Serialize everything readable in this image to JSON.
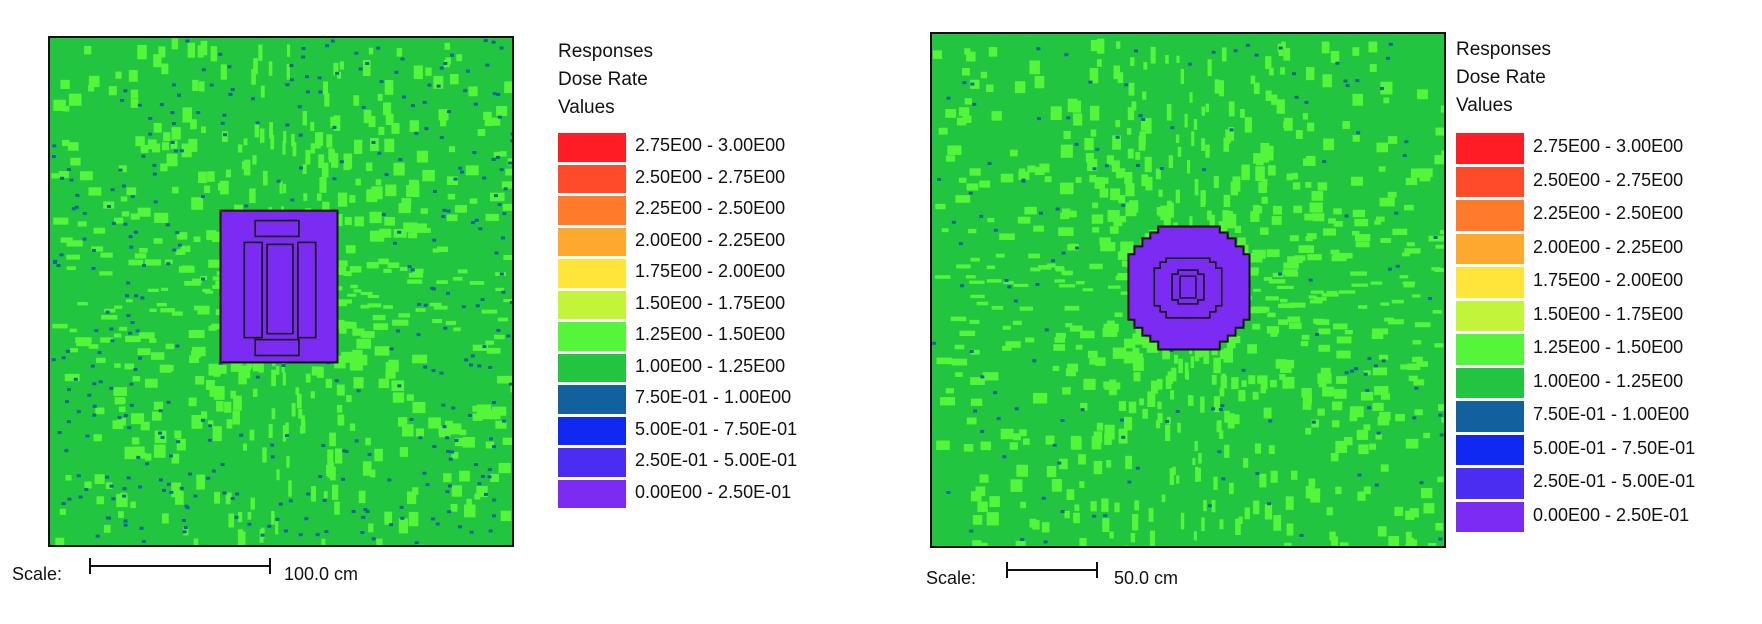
{
  "panels": [
    {
      "legend": {
        "title": "Responses",
        "response": "Dose Rate",
        "values_label": "Values"
      },
      "scale": {
        "label": "Scale:",
        "value": "100.0 cm"
      }
    },
    {
      "legend": {
        "title": "Responses",
        "response": "Dose Rate",
        "values_label": "Values"
      },
      "scale": {
        "label": "Scale:",
        "value": "50.0 cm"
      }
    }
  ],
  "ranges": [
    {
      "label": "2.75E00 - 3.00E00",
      "color": "#ff1c24"
    },
    {
      "label": "2.50E00 - 2.75E00",
      "color": "#ff4b2a"
    },
    {
      "label": "2.25E00 - 2.50E00",
      "color": "#ff7a2a"
    },
    {
      "label": "2.00E00 - 2.25E00",
      "color": "#ffa82f"
    },
    {
      "label": "1.75E00 - 2.00E00",
      "color": "#ffe43a"
    },
    {
      "label": "1.50E00 - 1.75E00",
      "color": "#c2f53a"
    },
    {
      "label": "1.25E00 - 1.50E00",
      "color": "#55f53a"
    },
    {
      "label": "1.00E00 - 1.25E00",
      "color": "#22c540"
    },
    {
      "label": "7.50E-01 - 1.00E00",
      "color": "#12609e"
    },
    {
      "label": "5.00E-01 - 7.50E-01",
      "color": "#1029f2"
    },
    {
      "label": "2.50E-01 - 5.00E-01",
      "color": "#4b2df2"
    },
    {
      "label": "0.00E00 - 2.50E-01",
      "color": "#7c2cf2"
    }
  ]
}
